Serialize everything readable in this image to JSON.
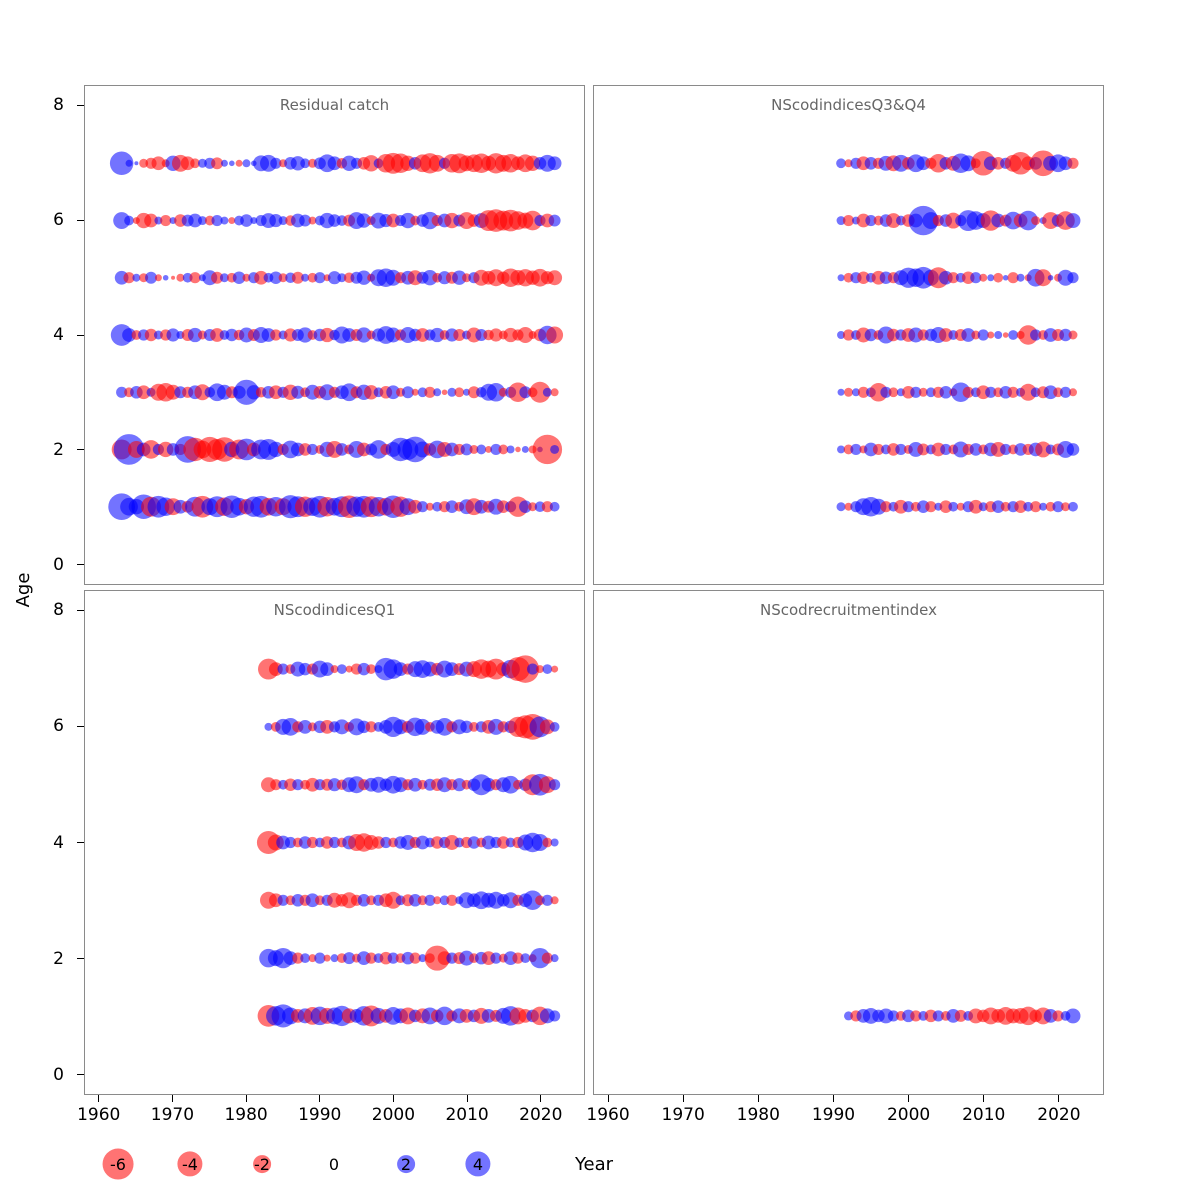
{
  "chart_data": {
    "type": "bubble",
    "xlabel": "Year",
    "ylabel": "Age",
    "x_ticks": [
      1960,
      1970,
      1980,
      1990,
      2000,
      2010,
      2020
    ],
    "y_ticks": [
      0,
      2,
      4,
      6,
      8
    ],
    "x_range": [
      1958,
      2026
    ],
    "y_range": [
      -0.35,
      8.35
    ],
    "grid": false,
    "legend": {
      "values": [
        -6,
        -4,
        -2,
        0,
        2,
        4
      ],
      "position": "bottom"
    },
    "size_scale": 6.3,
    "colors": {
      "negative": "#ff0000",
      "positive": "#0000ff",
      "opacity": 0.55,
      "panel_border": "#8a8a8a",
      "title_text": "#666666"
    },
    "panels": [
      {
        "title": "Residual catch",
        "year_start": 1963,
        "ages": [
          1,
          2,
          3,
          4,
          5,
          6,
          7
        ],
        "residuals_by_age": {
          "7": [
            3.5,
            0.3,
            0.1,
            -0.5,
            -0.8,
            -1.2,
            -0.4,
            1.5,
            -1.8,
            -1.2,
            -0.6,
            0.5,
            0.8,
            -0.9,
            0.3,
            0.2,
            -0.3,
            0.4,
            0.2,
            1.6,
            1.8,
            0.8,
            -0.4,
            1.0,
            1.3,
            0.6,
            -0.5,
            0.9,
            2.0,
            1.2,
            -0.7,
            1.5,
            0.8,
            -1.0,
            -1.7,
            0.6,
            -2.2,
            -2.8,
            -2.4,
            -1.5,
            1.0,
            -2.0,
            -2.6,
            -1.8,
            0.8,
            -2.2,
            -2.5,
            -1.6,
            -2.0,
            -2.4,
            -1.4,
            -2.6,
            -1.8,
            -2.2,
            -1.2,
            -2.0,
            -1.5,
            1.0,
            1.8,
            1.2
          ],
          "6": [
            1.8,
            0.6,
            -0.3,
            -1.5,
            -1.2,
            0.4,
            -0.8,
            0.3,
            -1.0,
            0.9,
            1.2,
            0.5,
            -0.6,
            0.8,
            0.4,
            -0.3,
            0.6,
            1.0,
            0.3,
            0.8,
            1.4,
            1.1,
            0.5,
            -0.7,
            1.2,
            0.9,
            -0.4,
            0.6,
            1.5,
            1.0,
            0.7,
            -0.9,
            1.8,
            1.3,
            -0.5,
            1.6,
            1.1,
            -1.2,
            0.8,
            1.5,
            -0.6,
            1.0,
            1.9,
            -0.8,
            1.2,
            -1.5,
            0.9,
            -1.8,
            -1.0,
            1.4,
            -2.8,
            -3.2,
            -2.5,
            -3.0,
            -2.2,
            -1.6,
            -2.4,
            0.8,
            -1.2,
            0.9
          ],
          "5": [
            1.2,
            -0.8,
            0.4,
            -0.5,
            0.9,
            -0.3,
            0.2,
            -0.1,
            -0.4,
            0.6,
            -0.8,
            0.3,
            1.4,
            -0.9,
            0.5,
            -0.6,
            1.0,
            -0.4,
            0.8,
            -1.2,
            0.6,
            1.0,
            -0.5,
            0.7,
            -0.9,
            0.4,
            -0.6,
            0.8,
            -0.3,
            1.1,
            0.5,
            -0.7,
            0.9,
            1.3,
            -0.4,
            1.8,
            2.2,
            1.6,
            -0.8,
            1.2,
            -1.4,
            0.9,
            1.5,
            -0.6,
            1.1,
            -0.9,
            1.3,
            -0.5,
            0.8,
            -1.6,
            -1.2,
            -1.8,
            -1.0,
            -2.2,
            -1.5,
            -1.9,
            -1.3,
            -2.0,
            -1.1,
            -1.4
          ],
          "4": [
            3.0,
            1.2,
            -0.6,
            0.8,
            -1.0,
            0.5,
            -0.8,
            1.1,
            0.4,
            -0.9,
            1.3,
            -0.5,
            0.9,
            -1.2,
            0.6,
            1.0,
            -0.7,
            1.4,
            -0.9,
            1.6,
            1.2,
            -0.8,
            0.5,
            -1.1,
            0.9,
            1.5,
            -0.6,
            1.0,
            -1.3,
            0.7,
            1.8,
            1.2,
            -0.9,
            1.5,
            -0.5,
            1.1,
            2.0,
            1.4,
            -0.8,
            1.6,
            1.0,
            -1.2,
            0.8,
            1.3,
            -0.6,
            1.1,
            -0.9,
            0.5,
            -1.4,
            0.9,
            -0.7,
            -1.1,
            -0.5,
            -1.3,
            -0.8,
            -1.6,
            -0.4,
            -1.0,
            2.2,
            -1.8
          ],
          "3": [
            0.8,
            -0.6,
            1.0,
            -1.2,
            0.5,
            -1.8,
            -2.2,
            -1.4,
            0.9,
            -0.8,
            1.2,
            -1.6,
            0.7,
            2.0,
            1.4,
            -0.9,
            1.1,
            4.0,
            1.3,
            -0.7,
            1.0,
            -1.2,
            0.8,
            -1.5,
            1.1,
            -0.6,
            1.4,
            -1.0,
            1.6,
            -0.8,
            1.2,
            2.0,
            -0.9,
            1.5,
            -1.3,
            0.6,
            -1.0,
            1.2,
            -0.5,
            0.9,
            -0.3,
            0.6,
            -0.8,
            0.4,
            -0.2,
            0.5,
            -0.6,
            0.3,
            -0.9,
            0.7,
            1.8,
            2.2,
            -0.5,
            0.8,
            -2.4,
            0.9,
            -0.6,
            -2.8,
            0.5,
            -0.4
          ],
          "2": [
            -2.5,
            6.0,
            -1.8,
            1.2,
            -2.2,
            0.8,
            -1.5,
            1.0,
            -0.8,
            4.5,
            -3.5,
            -2.0,
            -4.0,
            -2.8,
            -3.8,
            1.5,
            -2.5,
            3.0,
            -1.2,
            2.5,
            2.8,
            1.5,
            -0.8,
            2.0,
            1.2,
            -1.0,
            0.8,
            -0.5,
            1.5,
            -1.8,
            1.0,
            -0.6,
            1.8,
            -1.2,
            0.9,
            2.2,
            -0.8,
            1.4,
            3.5,
            2.8,
            4.2,
            1.6,
            -1.0,
            2.0,
            -1.4,
            1.2,
            -0.8,
            0.9,
            -0.5,
            0.6,
            -0.3,
            0.8,
            -0.6,
            0.4,
            -0.2,
            0.3,
            -0.4,
            0.2,
            -5.5,
            0.5
          ],
          "1": [
            4.5,
            2.0,
            1.5,
            3.8,
            -2.5,
            3.0,
            2.2,
            -1.8,
            1.2,
            -0.9,
            2.5,
            -3.0,
            1.8,
            2.8,
            -2.2,
            3.2,
            2.0,
            -1.5,
            2.6,
            3.0,
            -2.0,
            2.4,
            -1.8,
            3.4,
            2.8,
            -2.6,
            2.2,
            3.0,
            -2.4,
            2.0,
            2.8,
            -3.2,
            2.6,
            3.0,
            -2.8,
            2.4,
            -2.0,
            3.2,
            -2.6,
            1.8,
            -1.2,
            0.8,
            -0.4,
            0.6,
            -0.8,
            1.0,
            -0.6,
            1.4,
            -1.8,
            1.2,
            -0.9,
            1.6,
            -1.0,
            0.8,
            -2.6,
            1.0,
            -0.5,
            0.7,
            -0.8,
            0.6
          ]
        }
      },
      {
        "title": "NScodindicesQ3&Q4",
        "year_start": 1991,
        "ages": [
          1,
          2,
          3,
          4,
          5,
          6,
          7
        ],
        "residuals_by_age": {
          "7": [
            0.6,
            -0.4,
            0.8,
            -1.2,
            1.0,
            -0.8,
            1.4,
            -1.6,
            1.8,
            -1.0,
            2.0,
            1.2,
            -0.8,
            -2.2,
            1.0,
            -1.4,
            2.4,
            1.6,
            -0.6,
            -3.8,
            1.2,
            -1.0,
            0.8,
            -1.8,
            -3.2,
            -1.2,
            1.0,
            -4.2,
            1.4,
            2.0,
            1.2,
            -0.8
          ],
          "6": [
            0.5,
            -0.8,
            0.4,
            -1.2,
            0.8,
            -0.6,
            1.0,
            -1.4,
            0.6,
            -1.0,
            1.2,
            5.5,
            1.8,
            -0.8,
            1.0,
            -1.6,
            0.8,
            2.8,
            2.2,
            1.4,
            -2.6,
            1.2,
            -0.9,
            2.0,
            -1.2,
            2.4,
            -0.5,
            0.3,
            -1.8,
            1.0,
            -2.2,
            1.4
          ],
          "5": [
            0.3,
            -0.6,
            0.8,
            -1.0,
            0.6,
            -1.2,
            1.0,
            -0.8,
            1.4,
            2.6,
            2.2,
            3.0,
            1.6,
            -2.8,
            1.2,
            -0.8,
            0.6,
            -1.0,
            0.8,
            -0.4,
            0.3,
            -0.6,
            0.2,
            -0.8,
            0.4,
            -0.3,
            2.0,
            -1.8,
            0.2,
            -0.4,
            1.6,
            0.8
          ],
          "4": [
            0.4,
            -0.8,
            0.6,
            -1.4,
            1.0,
            -0.6,
            1.8,
            -1.0,
            0.8,
            -1.2,
            1.4,
            -0.8,
            1.0,
            1.6,
            -1.2,
            0.6,
            -0.9,
            1.2,
            -0.5,
            0.8,
            -0.3,
            0.4,
            -0.2,
            0.6,
            -0.4,
            -2.4,
            0.8,
            -0.6,
            1.2,
            -0.9,
            1.0,
            -0.5
          ],
          "3": [
            0.3,
            -0.5,
            0.4,
            -0.8,
            0.6,
            -2.2,
            0.8,
            -0.6,
            0.4,
            -1.0,
            0.8,
            -0.5,
            0.6,
            -0.8,
            1.0,
            -0.4,
            2.4,
            -0.8,
            0.6,
            -1.2,
            0.8,
            -0.6,
            1.0,
            -0.8,
            0.5,
            -1.8,
            0.6,
            -0.9,
            1.2,
            -0.6,
            0.8,
            -0.4
          ],
          "2": [
            0.4,
            -0.6,
            0.8,
            -0.4,
            1.2,
            -0.8,
            0.6,
            -1.0,
            0.8,
            -0.5,
            1.4,
            -0.9,
            0.6,
            -1.2,
            0.8,
            -0.6,
            1.6,
            -0.8,
            1.0,
            -0.6,
            1.2,
            -1.4,
            0.8,
            -0.6,
            1.0,
            -0.8,
            1.2,
            -1.6,
            0.6,
            -0.9,
            1.8,
            1.0
          ],
          "1": [
            0.5,
            -0.4,
            0.8,
            1.8,
            2.4,
            1.6,
            -0.8,
            0.6,
            -1.2,
            0.8,
            -0.6,
            1.0,
            -0.8,
            0.4,
            -1.0,
            0.6,
            -0.4,
            0.8,
            -1.2,
            0.5,
            -0.8,
            1.0,
            -0.6,
            0.8,
            -1.0,
            0.6,
            -0.8,
            0.4,
            -0.6,
            0.8,
            -0.5,
            0.6
          ]
        }
      },
      {
        "title": "NScodindicesQ1",
        "year_start": 1983,
        "ages": [
          1,
          2,
          3,
          4,
          5,
          6,
          7
        ],
        "residuals_by_age": {
          "7": [
            -2.8,
            -1.2,
            0.8,
            -0.6,
            1.4,
            1.0,
            -0.8,
            1.8,
            1.2,
            -0.4,
            0.6,
            -0.3,
            -0.8,
            1.0,
            -0.6,
            0.4,
            3.2,
            2.4,
            1.2,
            -0.8,
            1.6,
            2.0,
            1.4,
            -1.0,
            1.8,
            1.2,
            -0.9,
            1.4,
            -1.6,
            -2.4,
            -1.8,
            -2.8,
            -1.2,
            2.2,
            -3.6,
            -4.8,
            0.8,
            -0.4,
            0.6,
            -0.3
          ],
          "6": [
            0.4,
            -0.6,
            1.6,
            2.0,
            -0.8,
            1.2,
            -0.5,
            1.0,
            -1.2,
            0.8,
            1.4,
            -0.6,
            1.8,
            1.0,
            -0.8,
            0.6,
            1.2,
            2.6,
            1.4,
            -0.9,
            2.2,
            1.6,
            -0.6,
            1.2,
            2.0,
            -0.8,
            1.4,
            1.0,
            -0.6,
            0.8,
            -1.2,
            1.6,
            -0.8,
            1.0,
            -2.6,
            -3.4,
            -4.2,
            2.8,
            -1.4,
            0.6
          ],
          "5": [
            -1.4,
            -0.8,
            0.6,
            -1.0,
            0.8,
            -0.6,
            -1.2,
            0.8,
            -0.9,
            1.1,
            -0.7,
            1.4,
            1.8,
            -0.8,
            1.2,
            1.6,
            1.0,
            2.0,
            1.4,
            -0.8,
            1.2,
            -0.6,
            0.9,
            -1.0,
            1.4,
            -0.8,
            1.1,
            -0.6,
            1.0,
            2.8,
            1.2,
            -0.8,
            1.4,
            2.0,
            -0.6,
            1.0,
            -2.8,
            3.0,
            -1.8,
            0.8
          ],
          "4": [
            -3.4,
            -1.6,
            1.2,
            0.8,
            -0.6,
            1.0,
            -0.8,
            0.6,
            -1.0,
            0.8,
            -0.6,
            1.2,
            -1.8,
            -2.2,
            -1.4,
            -1.0,
            0.8,
            -0.6,
            1.0,
            1.4,
            -0.8,
            1.2,
            0.6,
            -1.0,
            0.8,
            -1.4,
            0.6,
            -0.8,
            1.0,
            -0.6,
            1.2,
            0.8,
            -1.0,
            0.6,
            -0.8,
            1.6,
            2.4,
            1.8,
            -0.6,
            0.4
          ],
          "3": [
            -1.8,
            -1.2,
            0.8,
            -0.6,
            1.0,
            -0.8,
            1.2,
            -0.6,
            0.8,
            -1.4,
            -1.0,
            -1.6,
            -0.8,
            1.0,
            -0.6,
            0.8,
            -1.2,
            -1.8,
            0.6,
            -0.9,
            1.0,
            -0.6,
            0.8,
            -0.4,
            0.6,
            -0.8,
            0.4,
            1.6,
            1.2,
            2.0,
            1.4,
            1.8,
            1.0,
            1.6,
            -0.8,
            1.2,
            2.4,
            -0.6,
            0.8,
            -0.4
          ],
          "2": [
            2.2,
            1.6,
            2.6,
            1.2,
            -0.8,
            0.6,
            -0.4,
            0.8,
            -0.3,
            0.4,
            -0.6,
            0.9,
            -0.5,
            1.2,
            -0.8,
            0.6,
            -1.0,
            0.8,
            -0.6,
            1.0,
            -0.8,
            0.4,
            -0.6,
            -4.0,
            -1.2,
            0.8,
            -0.9,
            1.4,
            -0.6,
            1.0,
            -1.2,
            0.8,
            -0.5,
            1.2,
            -0.8,
            0.6,
            -0.4,
            2.6,
            -0.8,
            0.4
          ],
          "1": [
            -3.0,
            2.4,
            3.4,
            1.8,
            -1.2,
            1.4,
            -2.0,
            2.2,
            -1.6,
            1.8,
            2.6,
            -1.4,
            1.2,
            2.4,
            -2.8,
            1.6,
            -1.2,
            2.0,
            1.4,
            -1.8,
            1.0,
            -1.4,
            1.8,
            -1.0,
            2.2,
            -0.8,
            1.4,
            -1.2,
            1.0,
            -1.6,
            1.2,
            -0.9,
            1.6,
            2.4,
            -1.8,
            -1.2,
            1.0,
            -2.2,
            1.4,
            0.8
          ]
        }
      },
      {
        "title": "NScodrecruitmentindex",
        "year_start": 1992,
        "ages": [
          1
        ],
        "residuals_by_age": {
          "1": [
            0.5,
            -0.8,
            1.2,
            1.6,
            1.0,
            1.4,
            0.8,
            -0.6,
            1.0,
            -0.8,
            0.6,
            -1.0,
            0.8,
            -0.6,
            1.2,
            -0.9,
            0.6,
            -1.4,
            -1.0,
            -1.8,
            -1.2,
            -2.0,
            -1.4,
            -1.6,
            -2.2,
            -1.0,
            -1.8,
            1.2,
            -0.8,
            0.6,
            1.4
          ]
        }
      }
    ]
  }
}
